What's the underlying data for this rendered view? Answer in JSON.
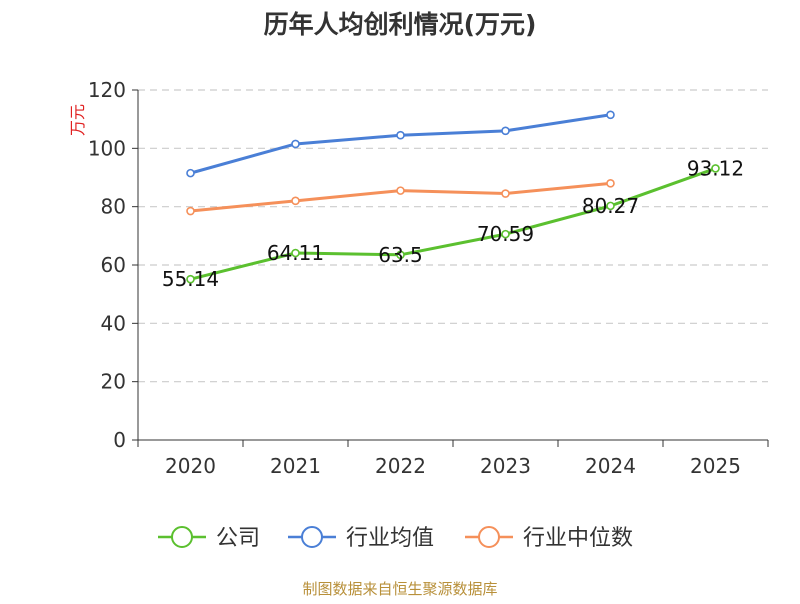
{
  "chart_data": {
    "type": "line",
    "title": "历年人均创利情况(万元)",
    "ylabel": "万元",
    "xlabel": "",
    "categories": [
      "2020",
      "2021",
      "2022",
      "2023",
      "2024",
      "2025"
    ],
    "ylim": [
      0,
      120
    ],
    "yticks": [
      0,
      20,
      40,
      60,
      80,
      100,
      120
    ],
    "grid": true,
    "legend_position": "bottom",
    "series": [
      {
        "name": "公司",
        "color": "#5bc02f",
        "values": [
          55.14,
          64.11,
          63.5,
          70.59,
          80.27,
          93.12
        ],
        "labels": [
          "55.14",
          "64.11",
          "63.5",
          "70.59",
          "80.27",
          "93.12"
        ]
      },
      {
        "name": "行业均值",
        "color": "#4a7fd6",
        "values": [
          91.5,
          101.5,
          104.5,
          106,
          111.5,
          null
        ],
        "labels": null
      },
      {
        "name": "行业中位数",
        "color": "#f5905a",
        "values": [
          78.5,
          82,
          85.5,
          84.5,
          88,
          null
        ],
        "labels": null
      }
    ]
  },
  "footer": {
    "source": "制图数据来自恒生聚源数据库"
  }
}
